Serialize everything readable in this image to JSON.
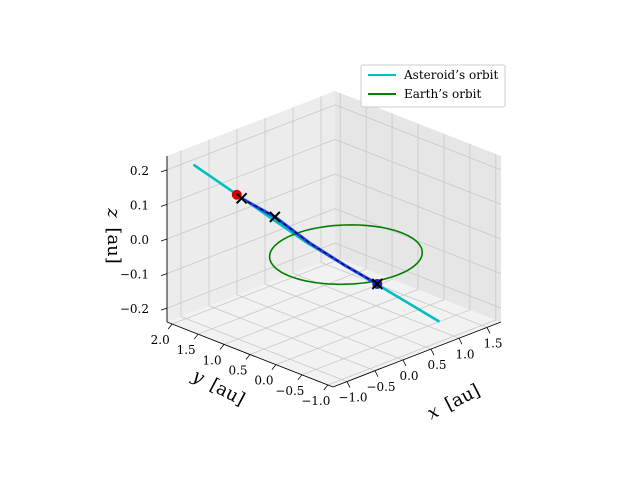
{
  "chart_data": {
    "type": "line",
    "projection": "3d",
    "title": "",
    "xlabel": "x [au]",
    "ylabel": "y [au]",
    "zlabel": "z [au]",
    "xlabel_var": "x",
    "xlabel_unit": "[au]",
    "ylabel_var": "y",
    "ylabel_unit": "[au]",
    "zlabel_var": "z",
    "zlabel_unit": "[au]",
    "xlim": [
      -1.25,
      1.75
    ],
    "ylim": [
      -1.1,
      2.1
    ],
    "zlim": [
      -0.24,
      0.24
    ],
    "x_ticks": [
      -1.0,
      -0.5,
      0.0,
      0.5,
      1.0,
      1.5
    ],
    "x_tick_labels": [
      "−1.0",
      "−0.5",
      "0.0",
      "0.5",
      "1.0",
      "1.5"
    ],
    "y_ticks": [
      -1.0,
      -0.5,
      0.0,
      0.5,
      1.0,
      1.5,
      2.0
    ],
    "y_tick_labels": [
      "−1.0",
      "−0.5",
      "0.0",
      "0.5",
      "1.0",
      "1.5",
      "2.0"
    ],
    "z_ticks": [
      -0.2,
      -0.1,
      0.0,
      0.1,
      0.2
    ],
    "z_tick_labels": [
      "−0.2",
      "−0.1",
      "0.0",
      "0.1",
      "0.2"
    ],
    "grid": true,
    "legend_position": "top-right",
    "series": [
      {
        "name": "Asteroid’s orbit",
        "color": "#00bfbf",
        "kind": "line",
        "points": [
          [
            -0.9,
            1.95,
            0.2
          ],
          [
            -0.6,
            1.55,
            0.13
          ],
          [
            -0.3,
            1.15,
            0.06
          ],
          [
            0.0,
            0.75,
            -0.01
          ],
          [
            0.3,
            0.35,
            -0.07
          ],
          [
            0.6,
            -0.05,
            -0.13
          ],
          [
            0.9,
            -0.45,
            -0.19
          ],
          [
            1.05,
            -0.65,
            -0.22
          ]
        ]
      },
      {
        "name": "Earth’s orbit",
        "color": "#008000",
        "kind": "circle",
        "radius": 1.0,
        "center": [
          0,
          0,
          0
        ]
      }
    ],
    "extra_marks": {
      "arc_color": "#1f3fff",
      "arc_dash_color": "#000000",
      "arc": [
        [
          -0.52,
          1.45,
          0.11
        ],
        [
          -0.25,
          1.1,
          0.06
        ],
        [
          0.02,
          0.72,
          -0.01
        ],
        [
          0.3,
          0.35,
          -0.07
        ],
        [
          0.56,
          0.0,
          -0.12
        ]
      ],
      "x_marker_color": "#000000",
      "x_markers": [
        [
          -0.52,
          1.45,
          0.11
        ],
        [
          -0.25,
          1.1,
          0.06
        ],
        [
          0.56,
          0.0,
          -0.12
        ]
      ],
      "dot_red": [
        -0.56,
        1.5,
        0.12
      ],
      "dot_blue": [
        0.56,
        0.0,
        -0.12
      ],
      "dot_red_color": "#d40000",
      "dot_blue_color": "#2020c0"
    }
  }
}
